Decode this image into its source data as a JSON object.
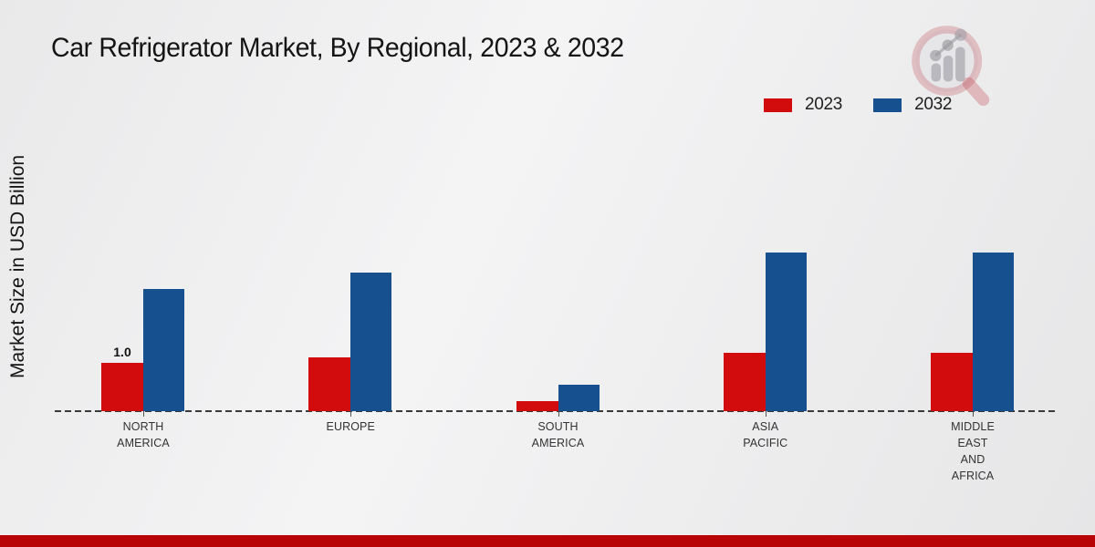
{
  "page": {
    "title": "Car Refrigerator Market, By Regional, 2023 & 2032",
    "ylabel": "Market Size in USD Billion"
  },
  "legend": {
    "items": [
      {
        "label": "2023",
        "color": "#d20c0c"
      },
      {
        "label": "2032",
        "color": "#16508e"
      }
    ]
  },
  "chart_data": {
    "type": "bar",
    "title": "Car Refrigerator Market, By Regional, 2023 & 2032",
    "xlabel": "",
    "ylabel": "Market Size in USD Billion",
    "categories": [
      "NORTH AMERICA",
      "EUROPE",
      "SOUTH AMERICA",
      "ASIA PACIFIC",
      "MIDDLE EAST AND AFRICA"
    ],
    "category_label_lines": [
      [
        "NORTH",
        "AMERICA"
      ],
      [
        "EUROPE"
      ],
      [
        "SOUTH",
        "AMERICA"
      ],
      [
        "ASIA",
        "PACIFIC"
      ],
      [
        "MIDDLE",
        "EAST",
        "AND",
        "AFRICA"
      ]
    ],
    "series": [
      {
        "name": "2023",
        "color": "#d20c0c",
        "values": [
          1.0,
          1.1,
          0.2,
          1.2,
          1.2
        ]
      },
      {
        "name": "2032",
        "color": "#16508e",
        "values": [
          2.5,
          2.85,
          0.55,
          3.25,
          3.25
        ]
      }
    ],
    "data_labels": [
      {
        "series": "2023",
        "category_index": 0,
        "text": "1.0"
      }
    ],
    "ylim": [
      0,
      3.5
    ],
    "grid": false,
    "baseline_style": "dashed",
    "legend_position": "top-right"
  },
  "branding": {
    "watermark_icon": "magnifier-bar-chart-logo",
    "footer_color": "#b80404"
  }
}
